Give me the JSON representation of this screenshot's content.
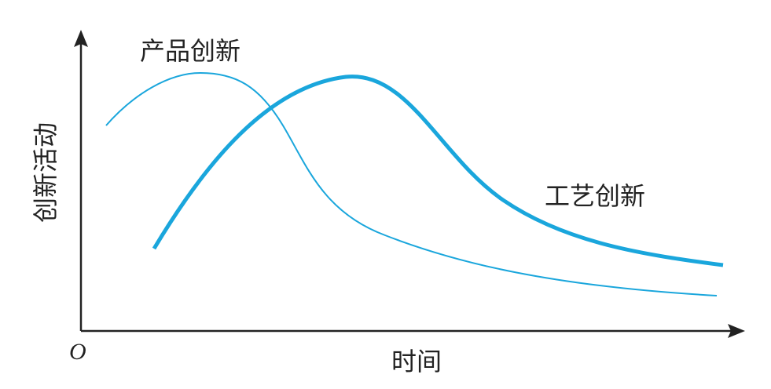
{
  "axes": {
    "origin": "O",
    "x_label": "时间",
    "y_label": "创新活动"
  },
  "curves": [
    {
      "label": "产品创新"
    },
    {
      "label": "工艺创新"
    }
  ]
}
